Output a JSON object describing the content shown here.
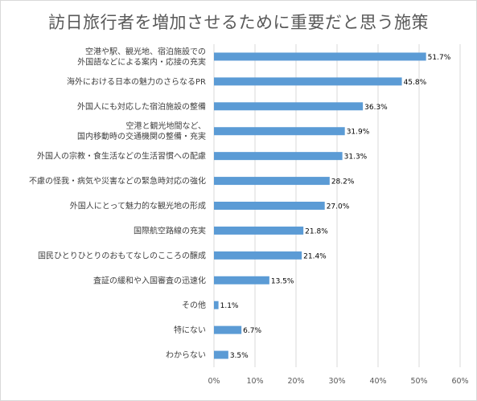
{
  "chart_data": {
    "type": "bar",
    "orientation": "horizontal",
    "title": "訪日旅行者を増加させるために重要だと思う施策",
    "categories": [
      [
        "空港や駅、観光地、宿泊施設での",
        "外国語などによる案内・応接の充実"
      ],
      [
        "海外における日本の魅力のさらなるPR"
      ],
      [
        "外国人にも対応した宿泊施設の整備"
      ],
      [
        "空港と観光地間など、",
        "国内移動時の交通機関の整備・充実"
      ],
      [
        "外国人の宗教・食生活などの生活習慣への配慮"
      ],
      [
        "不慮の怪我・病気や災害などの緊急時対応の強化"
      ],
      [
        "外国人にとって魅力的な観光地の形成"
      ],
      [
        "国際航空路線の充実"
      ],
      [
        "国民ひとりひとりのおもてなしのこころの醸成"
      ],
      [
        "査証の緩和や入国審査の迅速化"
      ],
      [
        "その他"
      ],
      [
        "特にない"
      ],
      [
        "わからない"
      ]
    ],
    "values": [
      51.7,
      45.8,
      36.3,
      31.9,
      31.3,
      28.2,
      27.0,
      21.8,
      21.4,
      13.5,
      1.1,
      6.7,
      3.5
    ],
    "value_labels": [
      "51.7%",
      "45.8%",
      "36.3%",
      "31.9%",
      "31.3%",
      "28.2%",
      "27.0%",
      "21.8%",
      "21.4%",
      "13.5%",
      "1.1%",
      "6.7%",
      "3.5%"
    ],
    "xlim": [
      0,
      60
    ],
    "xticks": [
      "0%",
      "10%",
      "20%",
      "30%",
      "40%",
      "50%",
      "60%"
    ],
    "grid": true,
    "bar_color": "#5b9bd5",
    "grid_color": "#d9d9d9"
  }
}
